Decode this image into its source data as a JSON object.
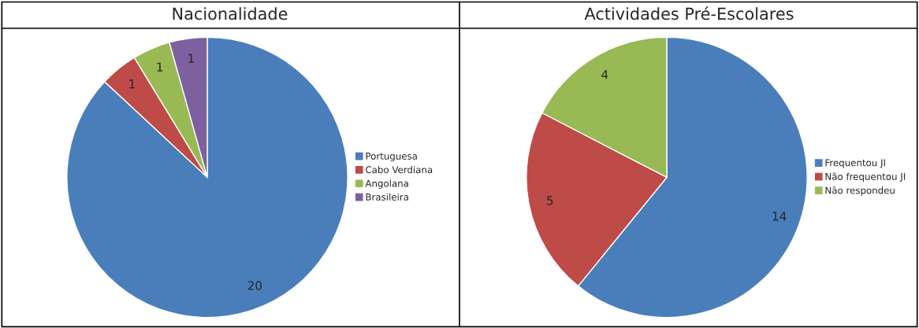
{
  "chart_data": [
    {
      "type": "pie",
      "title": "Nacionalidade",
      "categories": [
        "Portuguesa",
        "Cabo Verdiana",
        "Angolana",
        "Brasileira"
      ],
      "values": [
        20,
        1,
        1,
        1
      ],
      "colors": [
        "#4a7ebb",
        "#be4b48",
        "#98b954",
        "#7d60a0"
      ],
      "data_labels": true,
      "legend": "right"
    },
    {
      "type": "pie",
      "title": "Actividades Pré-Escolares",
      "categories": [
        "Frequentou JI",
        "Não frequentou JI",
        "Não respondeu"
      ],
      "values": [
        14,
        5,
        4
      ],
      "colors": [
        "#4a7ebb",
        "#be4b48",
        "#98b954"
      ],
      "data_labels": true,
      "legend": "right"
    }
  ]
}
